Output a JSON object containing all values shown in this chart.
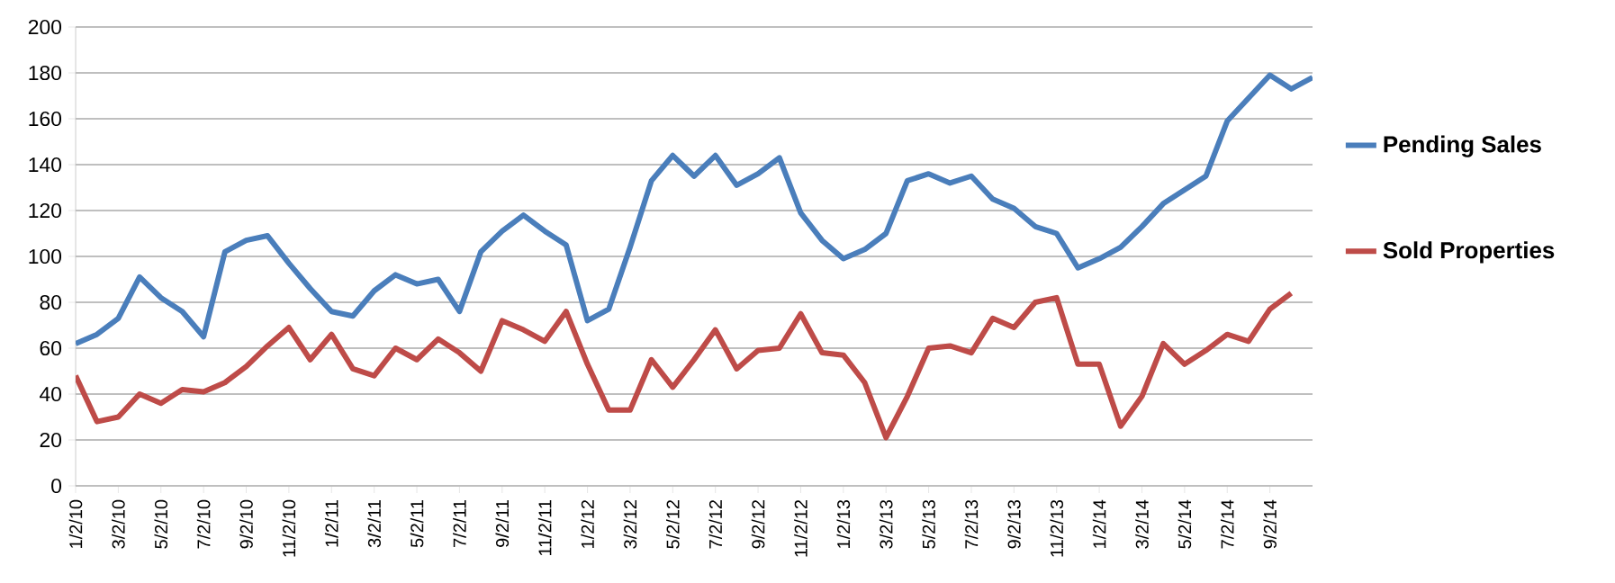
{
  "chart_data": {
    "type": "line",
    "categories": [
      "1/2/10",
      null,
      "3/2/10",
      null,
      "5/2/10",
      null,
      "7/2/10",
      null,
      "9/2/10",
      null,
      "11/2/10",
      null,
      "1/2/11",
      null,
      "3/2/11",
      null,
      "5/2/11",
      null,
      "7/2/11",
      null,
      "9/2/11",
      null,
      "11/2/11",
      null,
      "1/2/12",
      null,
      "3/2/12",
      null,
      "5/2/12",
      null,
      "7/2/12",
      null,
      "9/2/12",
      null,
      "11/2/12",
      null,
      "1/2/13",
      null,
      "3/2/13",
      null,
      "5/2/13",
      null,
      "7/2/13",
      null,
      "9/2/13",
      null,
      "11/2/13",
      null,
      "1/2/14",
      null,
      "3/2/14",
      null,
      "5/2/14",
      null,
      "7/2/14",
      null,
      "9/2/14",
      null,
      null
    ],
    "series": [
      {
        "name": "Pending Sales",
        "color": "#4a7ebb",
        "values": [
          62,
          66,
          73,
          91,
          82,
          76,
          65,
          102,
          107,
          109,
          97,
          86,
          76,
          74,
          85,
          92,
          88,
          90,
          76,
          102,
          111,
          118,
          111,
          105,
          72,
          77,
          104,
          133,
          144,
          135,
          144,
          131,
          136,
          143,
          119,
          107,
          99,
          103,
          110,
          133,
          136,
          132,
          135,
          125,
          121,
          113,
          110,
          95,
          99,
          104,
          113,
          123,
          129,
          135,
          159,
          169,
          179,
          173,
          178
        ]
      },
      {
        "name": "Sold Properties",
        "color": "#be4b48",
        "values": [
          48,
          28,
          30,
          40,
          36,
          42,
          41,
          45,
          52,
          61,
          69,
          55,
          66,
          51,
          48,
          60,
          55,
          64,
          58,
          50,
          72,
          68,
          63,
          76,
          53,
          33,
          33,
          55,
          43,
          55,
          68,
          51,
          59,
          60,
          75,
          58,
          57,
          45,
          21,
          39,
          60,
          61,
          58,
          73,
          69,
          80,
          82,
          53,
          53,
          26,
          39,
          62,
          53,
          59,
          66,
          63,
          77,
          84,
          null
        ]
      }
    ],
    "ylim": [
      0,
      200
    ],
    "yticks": [
      0,
      20,
      40,
      60,
      80,
      100,
      120,
      140,
      160,
      180,
      200
    ],
    "grid": "y",
    "legend": "right"
  }
}
